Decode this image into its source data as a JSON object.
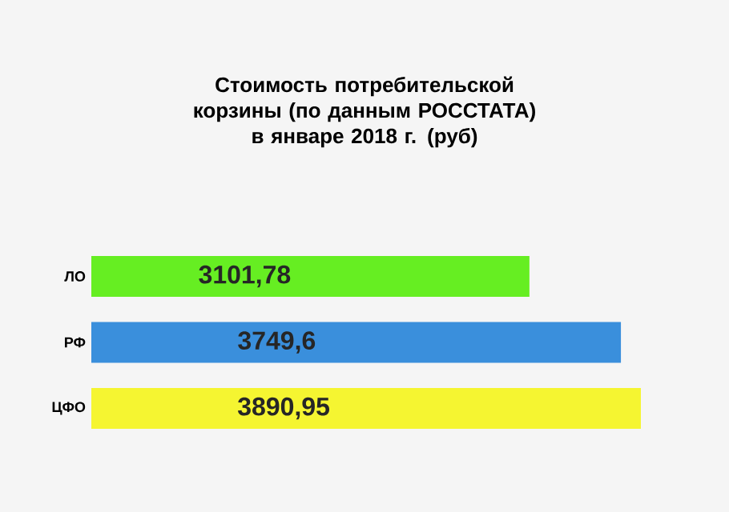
{
  "chart_data": {
    "type": "bar",
    "orientation": "horizontal",
    "title": "Стоимость потребительской корзины (по данным РОССТАТА) в январе 2018 г. (руб)",
    "categories": [
      "ЛО",
      "РФ",
      "ЦФО"
    ],
    "values": [
      3101.78,
      3749.6,
      3890.95
    ],
    "value_labels": [
      "3101,78",
      "3749,6",
      "3890,95"
    ],
    "colors": [
      "#66ee22",
      "#3a8fdc",
      "#f5f531"
    ]
  }
}
